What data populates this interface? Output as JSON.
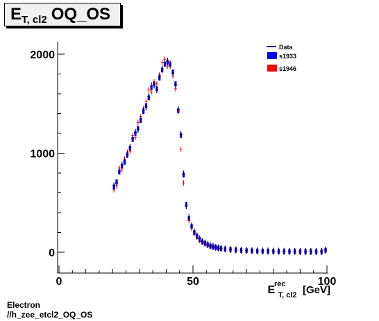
{
  "plot_title": {
    "main": "E",
    "sub": "T, cl2",
    "rest": "OQ_OS"
  },
  "footer": {
    "line1": "Electron",
    "line2": "//h_zee_etcl2_OQ_OS"
  },
  "colors": {
    "data": "#00008b",
    "s1933": "#0000ff",
    "s1946": "#ff0000",
    "axis": "#000000"
  },
  "chart_data": {
    "type": "scatter",
    "title": "E_{T, cl2} OQ_OS",
    "xlabel": {
      "main": "E",
      "sup": "rec",
      "sub": "T, cl2",
      "unit": "[GeV]"
    },
    "ylabel": "",
    "xlim": [
      0,
      100
    ],
    "ylim": [
      -80,
      2080
    ],
    "xticks": [
      0,
      50,
      100
    ],
    "yticks": [
      0,
      1000,
      2000
    ],
    "grid": false,
    "legend_position": "top-right",
    "legend": [
      "Data",
      "s1933",
      "s1946"
    ],
    "series": [
      {
        "name": "s1933",
        "x": [
          20.5,
          21.5,
          22.5,
          23.5,
          24.5,
          25.5,
          26.5,
          27.5,
          28.5,
          29.5,
          30.5,
          31.5,
          32.5,
          33.5,
          34.5,
          35.5,
          36.5,
          37.5,
          38.5,
          39.5,
          40.5,
          41.5,
          42.5,
          43.5,
          44.5,
          45.5,
          46.5,
          47.5,
          48.5,
          49.5,
          50.5,
          51.5,
          52.5,
          53.5,
          54.5,
          55.5,
          56.5,
          57.5,
          58.5,
          59.5,
          60.5,
          62,
          64,
          66,
          68,
          70,
          72,
          74,
          76,
          78,
          80,
          82,
          84,
          86,
          88,
          90,
          92,
          94,
          96,
          98,
          99.5
        ],
        "y": [
          660,
          710,
          810,
          870,
          910,
          980,
          1050,
          1140,
          1200,
          1250,
          1330,
          1420,
          1480,
          1560,
          1660,
          1700,
          1650,
          1760,
          1840,
          1900,
          1920,
          1900,
          1820,
          1700,
          1430,
          1180,
          780,
          480,
          340,
          260,
          200,
          160,
          130,
          105,
          90,
          75,
          62,
          55,
          48,
          42,
          38,
          32,
          27,
          22,
          19,
          16,
          14,
          12,
          11,
          10,
          9,
          8,
          8,
          7,
          7,
          6,
          6,
          6,
          6,
          6,
          20
        ]
      },
      {
        "name": "s1946",
        "x": [
          20.5,
          21.5,
          22.5,
          23.5,
          24.5,
          25.5,
          26.5,
          27.5,
          28.5,
          29.5,
          30.5,
          31.5,
          32.5,
          33.5,
          34.5,
          35.5,
          36.5,
          37.5,
          38.5,
          39.5,
          40.5,
          41.5,
          42.5,
          43.5,
          44.5,
          45.5,
          46.5,
          47.5,
          48.5,
          49.5,
          50.5,
          51.5,
          52.5,
          53.5,
          54.5,
          55.5,
          56.5,
          57.5,
          58.5,
          59.5,
          60.5,
          62,
          64,
          66,
          68,
          70,
          72,
          74,
          76,
          78,
          80,
          82,
          84,
          86,
          88,
          90,
          92,
          94,
          96,
          98,
          99.5
        ],
        "y": [
          630,
          670,
          850,
          830,
          940,
          1010,
          1020,
          1180,
          1160,
          1310,
          1370,
          1450,
          1520,
          1640,
          1620,
          1720,
          1700,
          1790,
          1920,
          1950,
          1880,
          1910,
          1780,
          1650,
          1420,
          1040,
          700,
          470,
          320,
          240,
          190,
          150,
          120,
          100,
          85,
          70,
          60,
          52,
          45,
          40,
          35,
          30,
          25,
          21,
          18,
          15,
          13,
          11,
          10,
          9,
          8,
          8,
          7,
          7,
          6,
          6,
          6,
          5,
          5,
          5,
          18
        ]
      },
      {
        "name": "Data",
        "x": [
          20.5,
          21.5,
          22.5,
          23.5,
          24.5,
          25.5,
          26.5,
          27.5,
          28.5,
          29.5,
          30.5,
          31.5,
          32.5,
          33.5,
          34.5,
          35.5,
          36.5,
          37.5,
          38.5,
          39.5,
          40.5,
          41.5,
          42.5,
          43.5,
          44.5,
          45.5,
          46.5,
          47.5,
          48.5,
          49.5,
          50.5,
          51.5,
          52.5,
          53.5,
          54.5,
          55.5,
          56.5,
          57.5,
          58.5,
          59.5,
          60.5,
          62,
          64,
          66,
          68,
          70,
          72,
          74,
          76,
          78,
          80,
          82,
          84,
          86,
          88,
          90,
          92,
          94,
          96,
          98,
          99.5
        ],
        "y": [
          670,
          700,
          820,
          880,
          920,
          990,
          1060,
          1150,
          1210,
          1240,
          1340,
          1430,
          1470,
          1570,
          1680,
          1690,
          1640,
          1770,
          1850,
          1910,
          1930,
          1890,
          1810,
          1690,
          1440,
          1190,
          790,
          470,
          350,
          265,
          205,
          165,
          135,
          108,
          92,
          77,
          64,
          56,
          49,
          43,
          39,
          33,
          28,
          23,
          20,
          17,
          15,
          13,
          12,
          11,
          10,
          9,
          9,
          8,
          8,
          7,
          7,
          7,
          7,
          7,
          22
        ]
      }
    ]
  }
}
